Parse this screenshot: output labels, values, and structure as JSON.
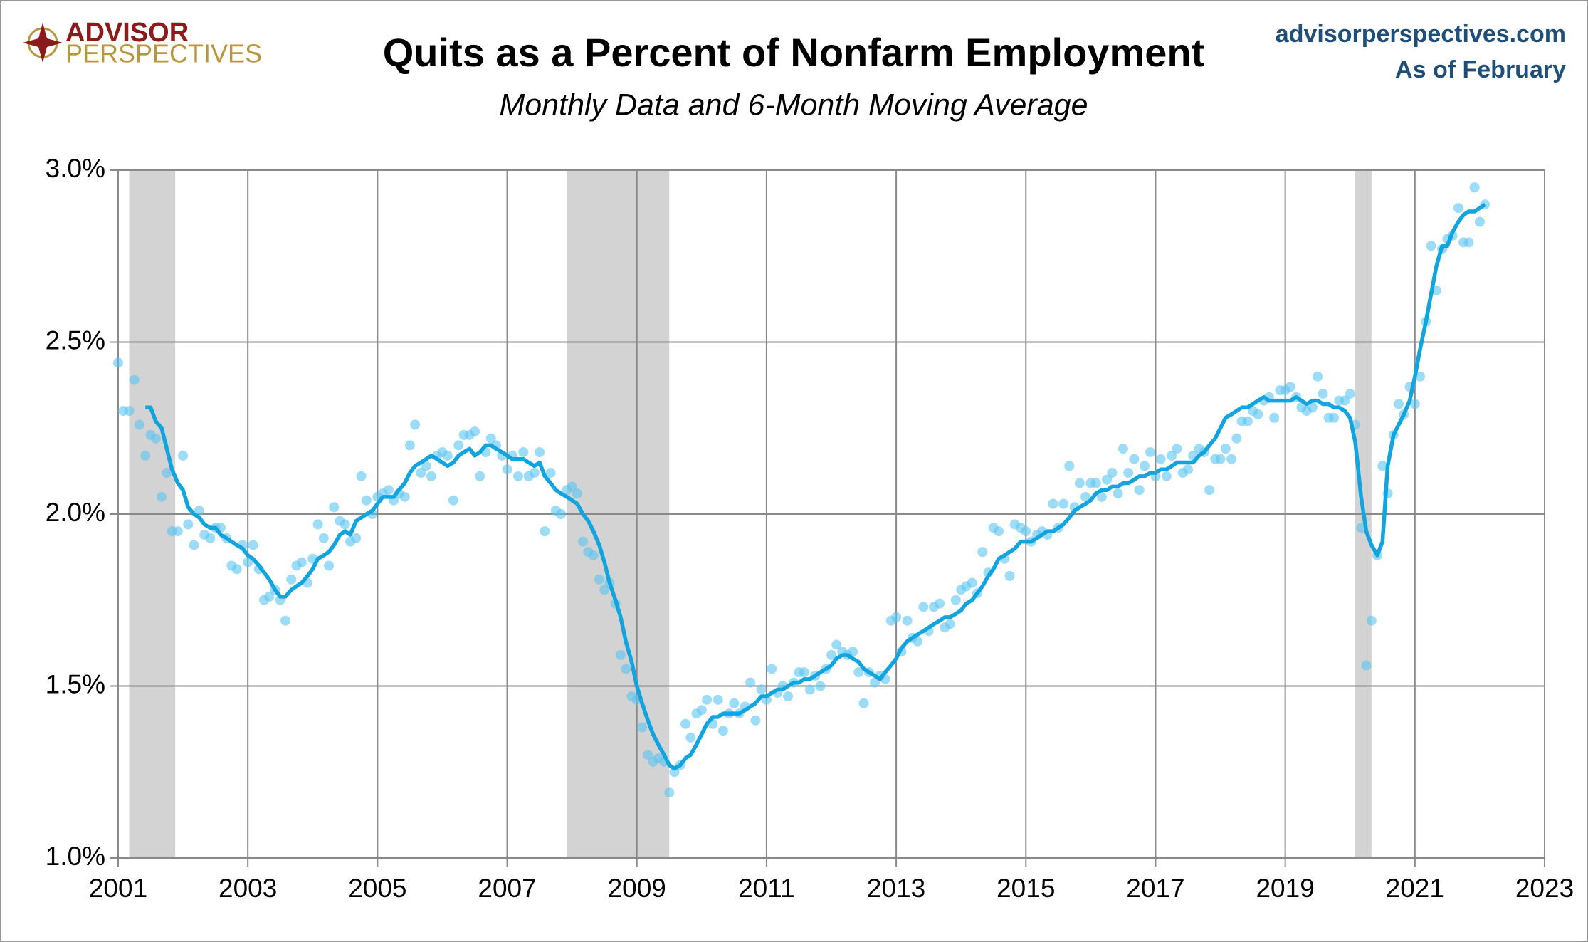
{
  "chart_data": {
    "type": "scatter-line",
    "logo": [
      "ADVISOR",
      "PERSPECTIVES"
    ],
    "title": "Quits as a Percent of Nonfarm Employment",
    "subtitle": "Monthly Data and 6-Month Moving Average",
    "source": "advisorperspectives.com",
    "note": "As of February",
    "xlim": [
      2001,
      2023
    ],
    "xticks": [
      2001,
      2003,
      2005,
      2007,
      2009,
      2011,
      2013,
      2015,
      2017,
      2019,
      2021,
      2023
    ],
    "ylim": [
      1.0,
      3.0
    ],
    "yticks": [
      {
        "value": 1.0,
        "label": "1.0%"
      },
      {
        "value": 1.5,
        "label": "1.5%"
      },
      {
        "value": 2.0,
        "label": "2.0%"
      },
      {
        "value": 2.5,
        "label": "2.5%"
      },
      {
        "value": 3.0,
        "label": "3.0%"
      }
    ],
    "grid": true,
    "recessions": [
      [
        2001.17,
        2001.88
      ],
      [
        2007.92,
        2009.5
      ],
      [
        2020.08,
        2020.33
      ]
    ],
    "recession_color": "#d3d3d3",
    "x": [
      2001,
      2001.08,
      2001.17,
      2001.25,
      2001.33,
      2001.42,
      2001.5,
      2001.58,
      2001.67,
      2001.75,
      2001.83,
      2001.92,
      2002,
      2002.08,
      2002.17,
      2002.25,
      2002.33,
      2002.42,
      2002.5,
      2002.58,
      2002.67,
      2002.75,
      2002.83,
      2002.92,
      2003,
      2003.08,
      2003.17,
      2003.25,
      2003.33,
      2003.42,
      2003.5,
      2003.58,
      2003.67,
      2003.75,
      2003.83,
      2003.92,
      2004,
      2004.08,
      2004.17,
      2004.25,
      2004.33,
      2004.42,
      2004.5,
      2004.58,
      2004.67,
      2004.75,
      2004.83,
      2004.92,
      2005,
      2005.08,
      2005.17,
      2005.25,
      2005.33,
      2005.42,
      2005.5,
      2005.58,
      2005.67,
      2005.75,
      2005.83,
      2005.92,
      2006,
      2006.08,
      2006.17,
      2006.25,
      2006.33,
      2006.42,
      2006.5,
      2006.58,
      2006.67,
      2006.75,
      2006.83,
      2006.92,
      2007,
      2007.08,
      2007.17,
      2007.25,
      2007.33,
      2007.42,
      2007.5,
      2007.58,
      2007.67,
      2007.75,
      2007.83,
      2007.92,
      2008,
      2008.08,
      2008.17,
      2008.25,
      2008.33,
      2008.42,
      2008.5,
      2008.58,
      2008.67,
      2008.75,
      2008.83,
      2008.92,
      2009,
      2009.08,
      2009.17,
      2009.25,
      2009.33,
      2009.42,
      2009.5,
      2009.58,
      2009.67,
      2009.75,
      2009.83,
      2009.92,
      2010,
      2010.08,
      2010.17,
      2010.25,
      2010.33,
      2010.42,
      2010.5,
      2010.58,
      2010.67,
      2010.75,
      2010.83,
      2010.92,
      2011,
      2011.08,
      2011.17,
      2011.25,
      2011.33,
      2011.42,
      2011.5,
      2011.58,
      2011.67,
      2011.75,
      2011.83,
      2011.92,
      2012,
      2012.08,
      2012.17,
      2012.25,
      2012.33,
      2012.42,
      2012.5,
      2012.58,
      2012.67,
      2012.75,
      2012.83,
      2012.92,
      2013,
      2013.08,
      2013.17,
      2013.25,
      2013.33,
      2013.42,
      2013.5,
      2013.58,
      2013.67,
      2013.75,
      2013.83,
      2013.92,
      2014,
      2014.08,
      2014.17,
      2014.25,
      2014.33,
      2014.42,
      2014.5,
      2014.58,
      2014.67,
      2014.75,
      2014.83,
      2014.92,
      2015,
      2015.08,
      2015.17,
      2015.25,
      2015.33,
      2015.42,
      2015.5,
      2015.58,
      2015.67,
      2015.75,
      2015.83,
      2015.92,
      2016,
      2016.08,
      2016.17,
      2016.25,
      2016.33,
      2016.42,
      2016.5,
      2016.58,
      2016.67,
      2016.75,
      2016.83,
      2016.92,
      2017,
      2017.08,
      2017.17,
      2017.25,
      2017.33,
      2017.42,
      2017.5,
      2017.58,
      2017.67,
      2017.75,
      2017.83,
      2017.92,
      2018,
      2018.08,
      2018.17,
      2018.25,
      2018.33,
      2018.42,
      2018.5,
      2018.58,
      2018.67,
      2018.75,
      2018.83,
      2018.92,
      2019,
      2019.08,
      2019.17,
      2019.25,
      2019.33,
      2019.42,
      2019.5,
      2019.58,
      2019.67,
      2019.75,
      2019.83,
      2019.92,
      2020,
      2020.08,
      2020.17,
      2020.25,
      2020.33,
      2020.42,
      2020.5,
      2020.58,
      2020.67,
      2020.75,
      2020.83,
      2020.92,
      2021,
      2021.08,
      2021.17,
      2021.25,
      2021.33,
      2021.42,
      2021.5,
      2021.58,
      2021.67,
      2021.75,
      2021.83,
      2021.92,
      2022,
      2022.08
    ],
    "series": [
      {
        "kind": "scatter",
        "color": "#5bc5f0",
        "values": [
          2.44,
          2.3,
          2.3,
          2.39,
          2.26,
          2.17,
          2.23,
          2.22,
          2.05,
          2.12,
          1.95,
          1.95,
          2.17,
          1.97,
          1.91,
          2.01,
          1.94,
          1.93,
          1.96,
          1.96,
          1.93,
          1.85,
          1.84,
          1.91,
          1.86,
          1.91,
          1.84,
          1.75,
          1.76,
          1.78,
          1.75,
          1.69,
          1.81,
          1.85,
          1.86,
          1.8,
          1.87,
          1.97,
          1.93,
          1.85,
          2.02,
          1.98,
          1.97,
          1.92,
          1.93,
          2.11,
          2.04,
          2.0,
          2.05,
          2.06,
          2.07,
          2.04,
          2.06,
          2.05,
          2.2,
          2.26,
          2.12,
          2.14,
          2.11,
          2.17,
          2.18,
          2.17,
          2.04,
          2.2,
          2.23,
          2.23,
          2.24,
          2.11,
          2.18,
          2.22,
          2.2,
          2.17,
          2.13,
          2.17,
          2.11,
          2.18,
          2.11,
          2.12,
          2.18,
          1.95,
          2.12,
          2.01,
          2.0,
          2.07,
          2.08,
          2.06,
          1.92,
          1.89,
          1.88,
          1.81,
          1.78,
          1.8,
          1.74,
          1.59,
          1.55,
          1.47,
          1.46,
          1.38,
          1.3,
          1.28,
          1.29,
          1.28,
          1.19,
          1.25,
          1.27,
          1.39,
          1.35,
          1.42,
          1.43,
          1.46,
          1.39,
          1.46,
          1.37,
          1.42,
          1.45,
          1.42,
          1.44,
          1.51,
          1.4,
          1.49,
          1.46,
          1.55,
          1.48,
          1.5,
          1.47,
          1.51,
          1.54,
          1.54,
          1.49,
          1.53,
          1.5,
          1.55,
          1.59,
          1.62,
          1.6,
          1.59,
          1.6,
          1.54,
          1.45,
          1.54,
          1.51,
          1.53,
          1.52,
          1.69,
          1.7,
          1.6,
          1.69,
          1.64,
          1.63,
          1.73,
          1.66,
          1.73,
          1.74,
          1.67,
          1.68,
          1.75,
          1.78,
          1.79,
          1.8,
          1.77,
          1.89,
          1.83,
          1.96,
          1.95,
          1.87,
          1.82,
          1.97,
          1.96,
          1.95,
          1.92,
          1.94,
          1.95,
          1.94,
          2.03,
          1.96,
          2.03,
          2.14,
          2.02,
          2.09,
          2.05,
          2.09,
          2.09,
          2.05,
          2.1,
          2.12,
          2.06,
          2.19,
          2.12,
          2.16,
          2.07,
          2.14,
          2.18,
          2.11,
          2.16,
          2.11,
          2.17,
          2.19,
          2.12,
          2.13,
          2.17,
          2.19,
          2.18,
          2.07,
          2.16,
          2.16,
          2.19,
          2.16,
          2.22,
          2.27,
          2.27,
          2.3,
          2.29,
          2.33,
          2.34,
          2.28,
          2.36,
          2.36,
          2.37,
          2.34,
          2.31,
          2.3,
          2.31,
          2.4,
          2.35,
          2.28,
          2.28,
          2.33,
          2.33,
          2.35,
          2.26,
          1.96,
          1.56,
          1.69,
          1.88,
          2.14,
          2.06,
          2.23,
          2.32,
          2.29,
          2.37,
          2.32,
          2.4,
          2.56,
          2.78,
          2.65,
          2.77,
          2.8,
          2.81,
          2.89,
          2.79,
          2.79,
          2.95,
          2.85,
          2.9
        ]
      },
      {
        "kind": "line",
        "color": "#12a4de",
        "values": [
          null,
          null,
          null,
          null,
          null,
          2.31,
          2.31,
          2.27,
          2.25,
          2.19,
          2.13,
          2.09,
          2.07,
          2.02,
          2.0,
          1.99,
          1.97,
          1.96,
          1.96,
          1.94,
          1.93,
          1.92,
          1.91,
          1.9,
          1.88,
          1.87,
          1.85,
          1.83,
          1.81,
          1.78,
          1.76,
          1.76,
          1.78,
          1.79,
          1.8,
          1.82,
          1.84,
          1.87,
          1.88,
          1.89,
          1.91,
          1.94,
          1.95,
          1.94,
          1.98,
          1.99,
          2.0,
          2.01,
          2.03,
          2.05,
          2.05,
          2.05,
          2.07,
          2.09,
          2.12,
          2.14,
          2.15,
          2.16,
          2.17,
          2.16,
          2.15,
          2.14,
          2.15,
          2.17,
          2.18,
          2.19,
          2.17,
          2.18,
          2.2,
          2.2,
          2.19,
          2.18,
          2.17,
          2.16,
          2.16,
          2.16,
          2.15,
          2.14,
          2.15,
          2.11,
          2.09,
          2.07,
          2.06,
          2.05,
          2.04,
          2.03,
          2.0,
          1.98,
          1.95,
          1.91,
          1.86,
          1.8,
          1.75,
          1.7,
          1.63,
          1.57,
          1.5,
          1.45,
          1.4,
          1.36,
          1.33,
          1.3,
          1.27,
          1.26,
          1.27,
          1.29,
          1.3,
          1.33,
          1.36,
          1.39,
          1.41,
          1.41,
          1.42,
          1.42,
          1.42,
          1.42,
          1.43,
          1.44,
          1.45,
          1.47,
          1.47,
          1.48,
          1.49,
          1.49,
          1.5,
          1.51,
          1.51,
          1.52,
          1.52,
          1.53,
          1.54,
          1.55,
          1.56,
          1.58,
          1.59,
          1.59,
          1.58,
          1.57,
          1.55,
          1.54,
          1.53,
          1.52,
          1.54,
          1.56,
          1.58,
          1.61,
          1.63,
          1.64,
          1.65,
          1.66,
          1.67,
          1.68,
          1.69,
          1.7,
          1.7,
          1.71,
          1.72,
          1.74,
          1.75,
          1.77,
          1.79,
          1.82,
          1.84,
          1.87,
          1.88,
          1.89,
          1.9,
          1.92,
          1.92,
          1.92,
          1.93,
          1.94,
          1.95,
          1.95,
          1.96,
          1.97,
          1.99,
          2.01,
          2.02,
          2.03,
          2.04,
          2.06,
          2.07,
          2.07,
          2.08,
          2.08,
          2.09,
          2.09,
          2.1,
          2.11,
          2.11,
          2.12,
          2.12,
          2.13,
          2.13,
          2.14,
          2.15,
          2.15,
          2.15,
          2.15,
          2.17,
          2.18,
          2.2,
          2.22,
          2.25,
          2.28,
          2.29,
          2.3,
          2.31,
          2.31,
          2.32,
          2.33,
          2.34,
          2.33,
          2.33,
          2.33,
          2.33,
          2.33,
          2.34,
          2.33,
          2.32,
          2.33,
          2.33,
          2.32,
          2.32,
          2.31,
          2.31,
          2.3,
          2.28,
          2.21,
          2.05,
          1.95,
          1.91,
          1.88,
          1.92,
          2.14,
          2.23,
          2.26,
          2.29,
          2.33,
          2.4,
          2.48,
          2.56,
          2.64,
          2.72,
          2.78,
          2.78,
          2.82,
          2.85,
          2.87,
          2.88,
          2.88,
          2.89,
          2.9
        ]
      }
    ]
  }
}
